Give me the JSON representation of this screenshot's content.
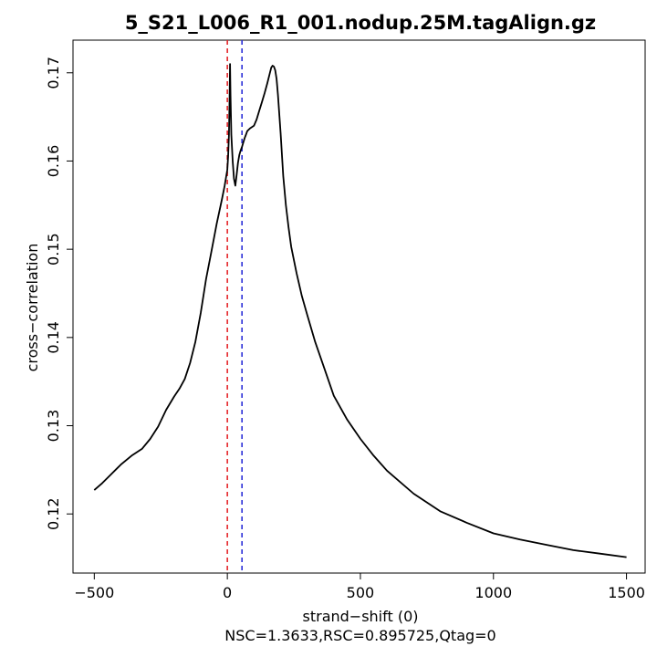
{
  "chart_data": {
    "type": "line",
    "title": "5_S21_L006_R1_001.nodup.25M.tagAlign.gz",
    "xlabel": "strand−shift (0)",
    "ylabel": "cross−correlation",
    "subtitle": "NSC=1.3633,RSC=0.895725,Qtag=0",
    "xlim": [
      -580,
      1570
    ],
    "ylim": [
      0.1133,
      0.1737
    ],
    "x_ticks": [
      -500,
      0,
      500,
      1000,
      1500
    ],
    "x_tick_labels": [
      "−500",
      "0",
      "500",
      "1000",
      "1500"
    ],
    "y_ticks": [
      0.12,
      0.13,
      0.14,
      0.15,
      0.16,
      0.17
    ],
    "y_tick_labels": [
      "0.12",
      "0.13",
      "0.14",
      "0.15",
      "0.16",
      "0.17"
    ],
    "grid": false,
    "series": [
      {
        "color": "#000000",
        "x": [
          -500,
          -470,
          -440,
          -400,
          -360,
          -320,
          -290,
          -260,
          -230,
          -200,
          -180,
          -160,
          -140,
          -120,
          -100,
          -80,
          -60,
          -40,
          -20,
          -10,
          0,
          3,
          6,
          8,
          10,
          12,
          15,
          20,
          25,
          30,
          35,
          40,
          45,
          50,
          55,
          60,
          65,
          70,
          75,
          85,
          100,
          110,
          120,
          130,
          140,
          150,
          160,
          165,
          170,
          175,
          180,
          185,
          190,
          200,
          210,
          220,
          230,
          240,
          260,
          280,
          300,
          330,
          360,
          400,
          450,
          500,
          550,
          600,
          700,
          800,
          900,
          1000,
          1100,
          1200,
          1300,
          1400,
          1500
        ],
        "y": [
          0.1227,
          0.1235,
          0.1244,
          0.1256,
          0.1266,
          0.1274,
          0.1285,
          0.1299,
          0.1318,
          0.1333,
          0.1342,
          0.1353,
          0.1371,
          0.1395,
          0.1428,
          0.1466,
          0.1497,
          0.1529,
          0.1557,
          0.1572,
          0.159,
          0.1605,
          0.163,
          0.1665,
          0.171,
          0.1675,
          0.163,
          0.16,
          0.158,
          0.1572,
          0.1585,
          0.1598,
          0.1607,
          0.1612,
          0.1616,
          0.1621,
          0.1626,
          0.163,
          0.1634,
          0.1637,
          0.164,
          0.1647,
          0.1657,
          0.1667,
          0.1677,
          0.1688,
          0.17,
          0.1706,
          0.1708,
          0.1707,
          0.1703,
          0.1693,
          0.1675,
          0.1632,
          0.1583,
          0.155,
          0.1525,
          0.1503,
          0.1473,
          0.1447,
          0.1426,
          0.1395,
          0.1369,
          0.1334,
          0.1307,
          0.1285,
          0.1266,
          0.1249,
          0.1223,
          0.1203,
          0.119,
          0.1178,
          0.1171,
          0.1165,
          0.1159,
          0.1155,
          0.1151
        ]
      }
    ],
    "vlines": [
      {
        "x": 0,
        "color": "#e5262a",
        "style": "dashed"
      },
      {
        "x": 55,
        "color": "#2a2fd8",
        "style": "dashed"
      }
    ]
  }
}
